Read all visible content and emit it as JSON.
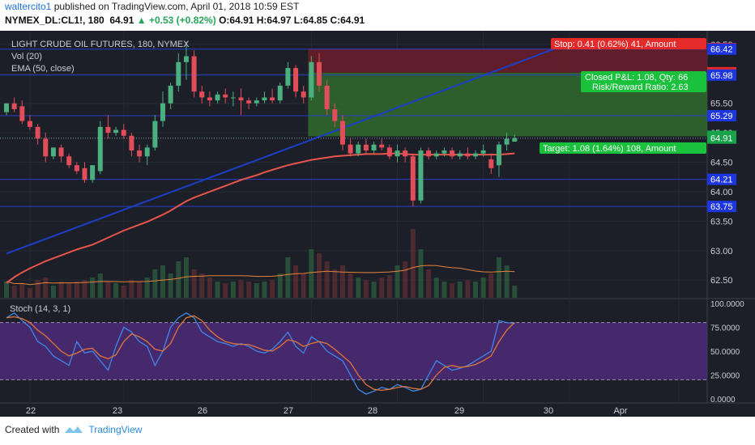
{
  "header": {
    "user": "waltercito1",
    "published": " published on TradingView.com, April 01, 2018 10:59 EST",
    "symbol": "NYMEX_DL:CL1!, 180",
    "last": "64.91",
    "change": "+0.53 (+0.82%)",
    "ohlc": "O:64.91 H:64.97 L:64.85 C:64.91"
  },
  "footer": {
    "created_with": "Created with",
    "brand": "TradingView"
  },
  "colors": {
    "bg": "#1c1f27",
    "up": "#4caf7f",
    "down": "#e24d5a",
    "ema": "#e8554d",
    "trend": "#1b3fc7",
    "vol_ma": "#e5823a",
    "stoch_k": "#3f87e8",
    "stoch_d": "#e0753a",
    "stoch_band": "#4c2b79",
    "stop_zone": "#6b1f2a",
    "target_zone": "#2f6b2d"
  },
  "chart_data": {
    "type": "candlestick",
    "title": "LIGHT CRUDE OIL FUTURES, 180, NYMEX",
    "indicators": [
      "Vol (20)",
      "EMA (50, close)"
    ],
    "price_axis": {
      "ylim": [
        62.2,
        66.65
      ],
      "ticks": [
        "62.50",
        "63.00",
        "63.50",
        "64.00",
        "64.50",
        "65.00",
        "65.50",
        "66.00",
        "66.50"
      ]
    },
    "date_labels": [
      "22",
      "23",
      "26",
      "27",
      "28",
      "29",
      "30",
      "Apr"
    ],
    "candles": [
      {
        "o": 65.35,
        "h": 65.5,
        "c": 65.5,
        "l": 65.3
      },
      {
        "o": 65.5,
        "h": 65.6,
        "c": 65.4,
        "l": 65.35
      },
      {
        "o": 65.45,
        "h": 65.55,
        "c": 65.2,
        "l": 65.15
      },
      {
        "o": 65.2,
        "h": 65.3,
        "c": 65.1,
        "l": 65.05
      },
      {
        "o": 65.1,
        "h": 65.15,
        "c": 64.9,
        "l": 64.8
      },
      {
        "o": 64.9,
        "h": 65.0,
        "c": 64.6,
        "l": 64.5
      },
      {
        "o": 64.6,
        "h": 64.75,
        "c": 64.75,
        "l": 64.55
      },
      {
        "o": 64.75,
        "h": 64.8,
        "c": 64.6,
        "l": 64.5
      },
      {
        "o": 64.6,
        "h": 64.65,
        "c": 64.45,
        "l": 64.4
      },
      {
        "o": 64.45,
        "h": 64.5,
        "c": 64.35,
        "l": 64.3
      },
      {
        "o": 64.4,
        "h": 64.5,
        "c": 64.2,
        "l": 64.15
      },
      {
        "o": 64.2,
        "h": 64.45,
        "c": 64.45,
        "l": 64.15
      },
      {
        "o": 64.35,
        "h": 65.2,
        "c": 65.1,
        "l": 64.3
      },
      {
        "o": 65.1,
        "h": 65.3,
        "c": 65.0,
        "l": 64.9
      },
      {
        "o": 65.0,
        "h": 65.1,
        "c": 65.05,
        "l": 64.95
      },
      {
        "o": 65.05,
        "h": 65.15,
        "c": 64.95,
        "l": 64.9
      },
      {
        "o": 64.95,
        "h": 65.0,
        "c": 64.7,
        "l": 64.6
      },
      {
        "o": 64.7,
        "h": 64.8,
        "c": 64.6,
        "l": 64.5
      },
      {
        "o": 64.6,
        "h": 64.8,
        "c": 64.75,
        "l": 64.45
      },
      {
        "o": 64.75,
        "h": 65.3,
        "c": 65.2,
        "l": 64.7
      },
      {
        "o": 65.2,
        "h": 65.7,
        "c": 65.5,
        "l": 65.1
      },
      {
        "o": 65.5,
        "h": 65.85,
        "c": 65.8,
        "l": 65.4
      },
      {
        "o": 65.8,
        "h": 66.35,
        "c": 66.2,
        "l": 65.7
      },
      {
        "o": 66.2,
        "h": 66.55,
        "c": 66.3,
        "l": 65.9
      },
      {
        "o": 66.3,
        "h": 66.4,
        "c": 65.7,
        "l": 65.6
      },
      {
        "o": 65.7,
        "h": 65.8,
        "c": 65.6,
        "l": 65.5
      },
      {
        "o": 65.6,
        "h": 65.7,
        "c": 65.55,
        "l": 65.45
      },
      {
        "o": 65.55,
        "h": 65.7,
        "c": 65.65,
        "l": 65.5
      },
      {
        "o": 65.65,
        "h": 65.75,
        "c": 65.6,
        "l": 65.5
      },
      {
        "o": 65.6,
        "h": 65.7,
        "c": 65.6,
        "l": 65.45
      },
      {
        "o": 65.6,
        "h": 65.75,
        "c": 65.55,
        "l": 65.3
      },
      {
        "o": 65.55,
        "h": 65.6,
        "c": 65.5,
        "l": 65.4
      },
      {
        "o": 65.5,
        "h": 65.6,
        "c": 65.55,
        "l": 65.45
      },
      {
        "o": 65.55,
        "h": 65.7,
        "c": 65.6,
        "l": 65.5
      },
      {
        "o": 65.6,
        "h": 65.75,
        "c": 65.55,
        "l": 65.5
      },
      {
        "o": 65.55,
        "h": 65.85,
        "c": 65.8,
        "l": 65.5
      },
      {
        "o": 65.8,
        "h": 66.2,
        "c": 66.1,
        "l": 65.75
      },
      {
        "o": 66.1,
        "h": 66.15,
        "c": 65.7,
        "l": 65.6
      },
      {
        "o": 65.7,
        "h": 65.8,
        "c": 65.6,
        "l": 65.5
      },
      {
        "o": 65.6,
        "h": 66.3,
        "c": 66.2,
        "l": 65.55
      },
      {
        "o": 66.2,
        "h": 66.35,
        "c": 65.8,
        "l": 65.7
      },
      {
        "o": 65.8,
        "h": 65.9,
        "c": 65.4,
        "l": 65.3
      },
      {
        "o": 65.4,
        "h": 65.5,
        "c": 65.2,
        "l": 65.1
      },
      {
        "o": 65.2,
        "h": 65.3,
        "c": 64.8,
        "l": 64.7
      },
      {
        "o": 64.8,
        "h": 64.9,
        "c": 64.65,
        "l": 64.6
      },
      {
        "o": 64.65,
        "h": 64.85,
        "c": 64.8,
        "l": 64.6
      },
      {
        "o": 64.8,
        "h": 64.9,
        "c": 64.7,
        "l": 64.65
      },
      {
        "o": 64.7,
        "h": 64.85,
        "c": 64.8,
        "l": 64.65
      },
      {
        "o": 64.8,
        "h": 64.9,
        "c": 64.75,
        "l": 64.7
      },
      {
        "o": 64.75,
        "h": 64.8,
        "c": 64.6,
        "l": 64.55
      },
      {
        "o": 64.6,
        "h": 64.8,
        "c": 64.7,
        "l": 64.5
      },
      {
        "o": 64.7,
        "h": 64.75,
        "c": 64.6,
        "l": 64.5
      },
      {
        "o": 64.6,
        "h": 64.65,
        "c": 63.85,
        "l": 63.75
      },
      {
        "o": 63.85,
        "h": 64.75,
        "c": 64.7,
        "l": 63.8
      },
      {
        "o": 64.7,
        "h": 64.75,
        "c": 64.6,
        "l": 64.55
      },
      {
        "o": 64.6,
        "h": 64.7,
        "c": 64.65,
        "l": 64.55
      },
      {
        "o": 64.65,
        "h": 64.75,
        "c": 64.7,
        "l": 64.6
      },
      {
        "o": 64.7,
        "h": 64.75,
        "c": 64.6,
        "l": 64.55
      },
      {
        "o": 64.6,
        "h": 64.7,
        "c": 64.65,
        "l": 64.55
      },
      {
        "o": 64.65,
        "h": 64.75,
        "c": 64.6,
        "l": 64.55
      },
      {
        "o": 64.6,
        "h": 64.7,
        "c": 64.65,
        "l": 64.55
      },
      {
        "o": 64.65,
        "h": 64.8,
        "c": 64.7,
        "l": 64.6
      },
      {
        "o": 64.55,
        "h": 64.65,
        "c": 64.4,
        "l": 64.3
      },
      {
        "o": 64.45,
        "h": 64.85,
        "c": 64.8,
        "l": 64.25
      },
      {
        "o": 64.8,
        "h": 65.0,
        "c": 64.9,
        "l": 64.7
      },
      {
        "o": 64.85,
        "h": 64.97,
        "c": 64.91,
        "l": 64.85
      }
    ],
    "volume": [
      0.2,
      0.15,
      0.18,
      0.12,
      0.22,
      0.25,
      0.15,
      0.2,
      0.18,
      0.2,
      0.22,
      0.25,
      0.3,
      0.2,
      0.18,
      0.15,
      0.22,
      0.2,
      0.25,
      0.35,
      0.4,
      0.3,
      0.45,
      0.5,
      0.35,
      0.3,
      0.25,
      0.2,
      0.18,
      0.2,
      0.22,
      0.2,
      0.18,
      0.2,
      0.22,
      0.3,
      0.5,
      0.4,
      0.3,
      0.6,
      0.55,
      0.45,
      0.35,
      0.4,
      0.3,
      0.25,
      0.22,
      0.2,
      0.25,
      0.28,
      0.4,
      0.45,
      0.85,
      0.6,
      0.35,
      0.25,
      0.2,
      0.18,
      0.2,
      0.22,
      0.2,
      0.25,
      0.3,
      0.5,
      0.4,
      0.15
    ],
    "ema": [
      62.45,
      62.55,
      62.63,
      62.7,
      62.76,
      62.82,
      62.87,
      62.92,
      62.97,
      63.02,
      63.06,
      63.1,
      63.16,
      63.22,
      63.28,
      63.34,
      63.39,
      63.44,
      63.49,
      63.55,
      63.61,
      63.68,
      63.76,
      63.84,
      63.9,
      63.95,
      64.0,
      64.05,
      64.1,
      64.15,
      64.2,
      64.24,
      64.28,
      64.33,
      64.37,
      64.41,
      64.45,
      64.48,
      64.51,
      64.54,
      64.56,
      64.58,
      64.6,
      64.61,
      64.62,
      64.63,
      64.64,
      64.64,
      64.64,
      64.65,
      64.65,
      64.64,
      64.63,
      64.63,
      64.63,
      64.63,
      64.63,
      64.63,
      64.63,
      64.63,
      64.63,
      64.63,
      64.63,
      64.63,
      64.64,
      64.65
    ],
    "trend_line": {
      "from_index": 0,
      "from_price": 62.95,
      "to_index": 70,
      "to_price": 66.42
    },
    "horizontal_levels": [
      66.42,
      65.98,
      65.29,
      64.21,
      63.75
    ],
    "badges": [
      {
        "text": "66.43",
        "color": "#e52a2a",
        "price": 66.43
      },
      {
        "text": "66.42",
        "color": "#1d36e0",
        "price": 66.42
      },
      {
        "text": "66.02",
        "color": "#e52a2a",
        "price": 66.02
      },
      {
        "text": "65.98",
        "color": "#1d36e0",
        "price": 65.98
      },
      {
        "text": "65.29",
        "color": "#1d36e0",
        "price": 65.29
      },
      {
        "text": "64.94",
        "color": "#16a34a",
        "price": 64.94
      },
      {
        "text": "64.91",
        "color": "#16a34a",
        "price": 64.91
      },
      {
        "text": "64.21",
        "color": "#1d36e0",
        "price": 64.21
      },
      {
        "text": "63.75",
        "color": "#1d36e0",
        "price": 63.75
      }
    ],
    "position": {
      "entry": 66.02,
      "stop": 66.43,
      "target": 64.94,
      "start_index": 39,
      "stop_label": "Stop: 0.41 (0.62%) 41, Amount",
      "pnl_label": "Closed P&L: 1.08, Qty: 66",
      "rr_label": "Risk/Reward Ratio: 2.63",
      "target_label": "Target: 1.08 (1.64%) 108, Amount"
    },
    "stoch": {
      "label": "Stoch (14, 3, 1)",
      "ticks": [
        "0.0000",
        "25.0000",
        "50.0000",
        "75.0000",
        "100.0000"
      ],
      "bands": [
        20,
        80
      ],
      "k": [
        85,
        90,
        82,
        75,
        60,
        55,
        45,
        40,
        35,
        60,
        48,
        50,
        40,
        30,
        55,
        75,
        70,
        60,
        55,
        35,
        50,
        75,
        85,
        90,
        85,
        70,
        65,
        60,
        58,
        55,
        58,
        55,
        50,
        48,
        52,
        60,
        70,
        55,
        48,
        65,
        60,
        50,
        45,
        40,
        25,
        10,
        5,
        8,
        12,
        10,
        15,
        12,
        8,
        10,
        25,
        40,
        35,
        30,
        32,
        35,
        40,
        45,
        50,
        82,
        80,
        79
      ],
      "d": [
        85,
        86,
        84,
        80,
        72,
        66,
        58,
        50,
        45,
        48,
        52,
        53,
        45,
        42,
        46,
        60,
        68,
        65,
        60,
        52,
        50,
        58,
        75,
        85,
        87,
        82,
        72,
        65,
        60,
        58,
        57,
        57,
        54,
        51,
        50,
        55,
        62,
        60,
        55,
        58,
        60,
        58,
        52,
        45,
        38,
        25,
        15,
        10,
        9,
        10,
        12,
        13,
        11,
        10,
        14,
        25,
        33,
        35,
        33,
        34,
        36,
        40,
        45,
        60,
        72,
        80
      ]
    }
  }
}
